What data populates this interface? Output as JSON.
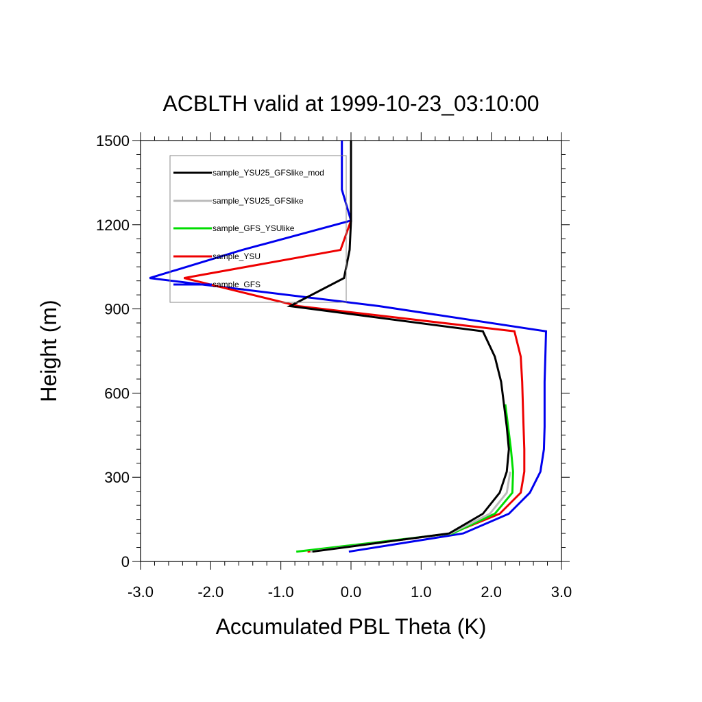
{
  "chart_data": {
    "type": "line",
    "title": "ACBLTH valid at 1999-10-23_03:10:00",
    "xlabel": "Accumulated PBL Theta (K)",
    "ylabel": "Height (m)",
    "xlim": [
      -3.0,
      3.0
    ],
    "ylim": [
      0,
      1500
    ],
    "x_ticks": [
      "-3.0",
      "-2.0",
      "-1.0",
      "0.0",
      "1.0",
      "2.0",
      "3.0"
    ],
    "y_ticks": [
      "0",
      "300",
      "600",
      "900",
      "1200",
      "1500"
    ],
    "grid": false,
    "legend_position": "top-left",
    "series": [
      {
        "name": "sample_YSU25_GFSlike_mod",
        "color": "#000000",
        "points": [
          [
            -0.55,
            35
          ],
          [
            1.4,
            100
          ],
          [
            1.88,
            170
          ],
          [
            2.12,
            245
          ],
          [
            2.22,
            320
          ],
          [
            2.25,
            400
          ],
          [
            2.22,
            480
          ],
          [
            2.18,
            560
          ],
          [
            2.14,
            640
          ],
          [
            2.05,
            730
          ],
          [
            1.88,
            820
          ],
          [
            -0.87,
            910
          ],
          [
            -0.1,
            1010
          ],
          [
            -0.02,
            1110
          ],
          [
            0.0,
            1215
          ],
          [
            0.0,
            1500
          ]
        ]
      },
      {
        "name": "sample_YSU25_GFSlike",
        "color": "#bbbbbb",
        "points": [
          [
            -0.58,
            35
          ],
          [
            1.42,
            100
          ],
          [
            1.98,
            170
          ],
          [
            2.22,
            245
          ],
          [
            2.27,
            320
          ]
        ]
      },
      {
        "name": "sample_GFS_YSUlike",
        "color": "#00dd00",
        "points": [
          [
            -0.78,
            35
          ],
          [
            1.45,
            100
          ],
          [
            2.05,
            170
          ],
          [
            2.3,
            245
          ],
          [
            2.31,
            320
          ],
          [
            2.28,
            400
          ],
          [
            2.24,
            480
          ],
          [
            2.2,
            560
          ]
        ]
      },
      {
        "name": "sample_YSU",
        "color": "#ee0000",
        "points": [
          [
            -0.62,
            35
          ],
          [
            1.43,
            100
          ],
          [
            2.12,
            170
          ],
          [
            2.42,
            245
          ],
          [
            2.47,
            320
          ],
          [
            2.47,
            400
          ],
          [
            2.46,
            480
          ],
          [
            2.45,
            560
          ],
          [
            2.44,
            640
          ],
          [
            2.42,
            730
          ],
          [
            2.33,
            820
          ],
          [
            -0.75,
            910
          ],
          [
            -2.38,
            1010
          ],
          [
            -0.15,
            1110
          ],
          [
            0.0,
            1215
          ]
        ]
      },
      {
        "name": "sample_GFS",
        "color": "#0000ee",
        "points": [
          [
            -0.03,
            35
          ],
          [
            1.6,
            100
          ],
          [
            2.25,
            170
          ],
          [
            2.55,
            245
          ],
          [
            2.7,
            320
          ],
          [
            2.75,
            400
          ],
          [
            2.76,
            480
          ],
          [
            2.76,
            560
          ],
          [
            2.76,
            640
          ],
          [
            2.77,
            730
          ],
          [
            2.78,
            820
          ],
          [
            0.4,
            910
          ],
          [
            -2.87,
            1010
          ],
          [
            -1.55,
            1110
          ],
          [
            0.0,
            1215
          ],
          [
            -0.13,
            1325
          ],
          [
            -0.13,
            1500
          ]
        ]
      }
    ]
  }
}
